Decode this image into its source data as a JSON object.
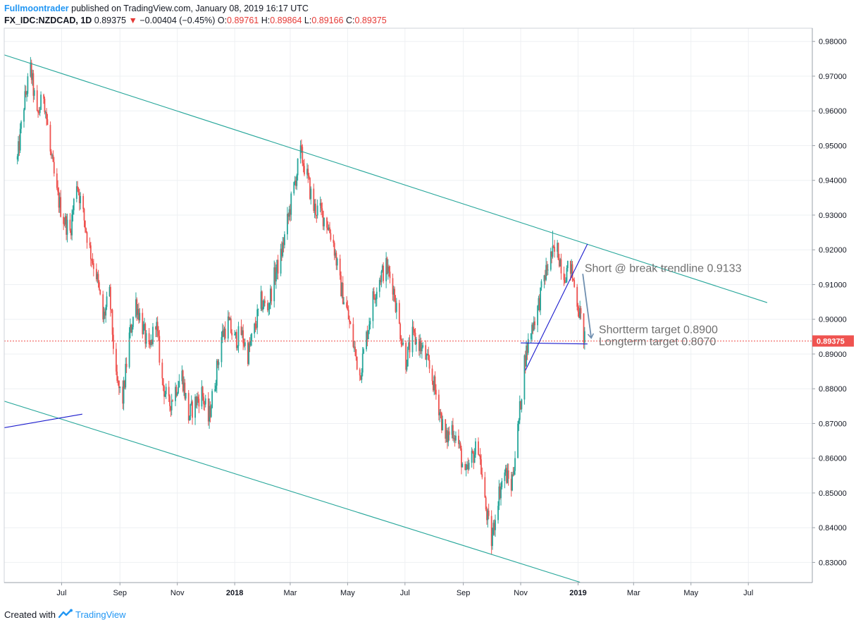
{
  "header": {
    "author": "Fullmoontrader",
    "published": "published on TradingView.com, January 08, 2019 16:17 UTC",
    "symbol": "FX_IDC:NZDCAD, 1D",
    "last": "0.89375",
    "change": "−0.00404 (−0.45%)",
    "o_label": "O:",
    "o_value": "0.89761",
    "h_label": "H:",
    "h_value": "0.89864",
    "l_label": "L:",
    "l_value": "0.89166",
    "c_label": "C:",
    "c_value": "0.89375"
  },
  "footer": {
    "created_with": "Created with",
    "brand": "TradingView"
  },
  "colors": {
    "up": "#26a69a",
    "down": "#ef5350",
    "channel": "#26a69a",
    "trend": "#1a1acd",
    "arrow": "#6f8fb0",
    "price_line": "#ef5350",
    "grid": "#eef0f3",
    "text": "#131722",
    "annotation": "#707070"
  },
  "chart_data": {
    "type": "candlestick",
    "x_axis": {
      "ticks": [
        {
          "label": "Jul",
          "date": "2017-07-01",
          "bold": false
        },
        {
          "label": "Sep",
          "date": "2017-09-01",
          "bold": false
        },
        {
          "label": "Nov",
          "date": "2017-11-01",
          "bold": false
        },
        {
          "label": "2018",
          "date": "2018-01-01",
          "bold": true
        },
        {
          "label": "Mar",
          "date": "2018-03-01",
          "bold": false
        },
        {
          "label": "May",
          "date": "2018-05-01",
          "bold": false
        },
        {
          "label": "Jul",
          "date": "2018-07-01",
          "bold": false
        },
        {
          "label": "Sep",
          "date": "2018-09-01",
          "bold": false
        },
        {
          "label": "Nov",
          "date": "2018-11-01",
          "bold": false
        },
        {
          "label": "2019",
          "date": "2019-01-01",
          "bold": true
        },
        {
          "label": "Mar",
          "date": "2019-03-01",
          "bold": false
        },
        {
          "label": "May",
          "date": "2019-05-01",
          "bold": false
        },
        {
          "label": "Jul",
          "date": "2019-07-01",
          "bold": false
        }
      ]
    },
    "y_axis": {
      "ylim": [
        0.8242,
        0.9838
      ],
      "ticks": [
        "0.98000",
        "0.97000",
        "0.96000",
        "0.95000",
        "0.94000",
        "0.93000",
        "0.92000",
        "0.91000",
        "0.90000",
        "0.89000",
        "0.88000",
        "0.87000",
        "0.86000",
        "0.85000",
        "0.84000",
        "0.83000"
      ],
      "tick_values": [
        0.98,
        0.97,
        0.96,
        0.95,
        0.94,
        0.93,
        0.92,
        0.91,
        0.9,
        0.89,
        0.88,
        0.87,
        0.86,
        0.85,
        0.84,
        0.83
      ]
    },
    "grid": true,
    "current_price": {
      "value": 0.89375,
      "label": "0.89375"
    },
    "price_path": [
      [
        "2017-05-15",
        0.946
      ],
      [
        "2017-05-22",
        0.962
      ],
      [
        "2017-05-29",
        0.972
      ],
      [
        "2017-06-05",
        0.958
      ],
      [
        "2017-06-12",
        0.965
      ],
      [
        "2017-06-19",
        0.948
      ],
      [
        "2017-06-26",
        0.936
      ],
      [
        "2017-07-03",
        0.929
      ],
      [
        "2017-07-10",
        0.925
      ],
      [
        "2017-07-17",
        0.94
      ],
      [
        "2017-07-24",
        0.93
      ],
      [
        "2017-07-31",
        0.92
      ],
      [
        "2017-08-07",
        0.913
      ],
      [
        "2017-08-14",
        0.9
      ],
      [
        "2017-08-21",
        0.907
      ],
      [
        "2017-08-28",
        0.882
      ],
      [
        "2017-09-04",
        0.877
      ],
      [
        "2017-09-11",
        0.895
      ],
      [
        "2017-09-18",
        0.905
      ],
      [
        "2017-09-25",
        0.898
      ],
      [
        "2017-10-02",
        0.89
      ],
      [
        "2017-10-09",
        0.9
      ],
      [
        "2017-10-16",
        0.882
      ],
      [
        "2017-10-23",
        0.875
      ],
      [
        "2017-10-30",
        0.88
      ],
      [
        "2017-11-06",
        0.884
      ],
      [
        "2017-11-13",
        0.872
      ],
      [
        "2017-11-20",
        0.876
      ],
      [
        "2017-11-27",
        0.879
      ],
      [
        "2017-12-04",
        0.871
      ],
      [
        "2017-12-11",
        0.882
      ],
      [
        "2017-12-18",
        0.895
      ],
      [
        "2017-12-25",
        0.899
      ],
      [
        "2018-01-01",
        0.894
      ],
      [
        "2018-01-08",
        0.896
      ],
      [
        "2018-01-15",
        0.89
      ],
      [
        "2018-01-22",
        0.897
      ],
      [
        "2018-01-29",
        0.905
      ],
      [
        "2018-02-05",
        0.903
      ],
      [
        "2018-02-12",
        0.912
      ],
      [
        "2018-02-19",
        0.918
      ],
      [
        "2018-02-26",
        0.928
      ],
      [
        "2018-03-05",
        0.938
      ],
      [
        "2018-03-12",
        0.948
      ],
      [
        "2018-03-19",
        0.941
      ],
      [
        "2018-03-26",
        0.932
      ],
      [
        "2018-04-02",
        0.931
      ],
      [
        "2018-04-09",
        0.928
      ],
      [
        "2018-04-16",
        0.922
      ],
      [
        "2018-04-23",
        0.91
      ],
      [
        "2018-04-30",
        0.903
      ],
      [
        "2018-05-07",
        0.893
      ],
      [
        "2018-05-14",
        0.884
      ],
      [
        "2018-05-21",
        0.895
      ],
      [
        "2018-05-28",
        0.906
      ],
      [
        "2018-06-04",
        0.912
      ],
      [
        "2018-06-11",
        0.915
      ],
      [
        "2018-06-18",
        0.91
      ],
      [
        "2018-06-25",
        0.898
      ],
      [
        "2018-07-02",
        0.888
      ],
      [
        "2018-07-09",
        0.895
      ],
      [
        "2018-07-16",
        0.893
      ],
      [
        "2018-07-23",
        0.889
      ],
      [
        "2018-07-30",
        0.883
      ],
      [
        "2018-08-06",
        0.875
      ],
      [
        "2018-08-13",
        0.865
      ],
      [
        "2018-08-20",
        0.869
      ],
      [
        "2018-08-27",
        0.864
      ],
      [
        "2018-09-03",
        0.854
      ],
      [
        "2018-09-10",
        0.86
      ],
      [
        "2018-09-17",
        0.864
      ],
      [
        "2018-09-24",
        0.847
      ],
      [
        "2018-10-01",
        0.836
      ],
      [
        "2018-10-08",
        0.849
      ],
      [
        "2018-10-15",
        0.856
      ],
      [
        "2018-10-22",
        0.852
      ],
      [
        "2018-10-29",
        0.868
      ],
      [
        "2018-11-05",
        0.888
      ],
      [
        "2018-11-12",
        0.897
      ],
      [
        "2018-11-19",
        0.903
      ],
      [
        "2018-11-26",
        0.912
      ],
      [
        "2018-12-03",
        0.918
      ],
      [
        "2018-12-10",
        0.92
      ],
      [
        "2018-12-17",
        0.913
      ],
      [
        "2018-12-24",
        0.915
      ],
      [
        "2019-01-01",
        0.904
      ],
      [
        "2019-01-08",
        0.894
      ]
    ],
    "extremes": [
      {
        "date": "2017-05-29",
        "high": 0.9755
      },
      {
        "date": "2018-03-12",
        "high": 0.9515
      },
      {
        "date": "2018-10-01",
        "low": 0.8322
      },
      {
        "date": "2018-12-05",
        "high": 0.9255
      }
    ],
    "drawings": [
      {
        "name": "upper-channel-line",
        "type": "trendline",
        "color": "channel",
        "from": [
          "2017-04-29",
          0.9763
        ],
        "to": [
          "2019-07-21",
          0.9048
        ]
      },
      {
        "name": "lower-channel-line",
        "type": "trendline",
        "color": "channel",
        "from": [
          "2017-04-29",
          0.8766
        ],
        "to": [
          "2019-01-03",
          0.8243
        ]
      },
      {
        "name": "short-left-trendline",
        "type": "trendline",
        "color": "trend",
        "from": [
          "2017-04-29",
          0.8687
        ],
        "to": [
          "2017-07-23",
          0.8727
        ]
      },
      {
        "name": "rising-trendline",
        "type": "trendline",
        "color": "trend",
        "from": [
          "2018-11-06",
          0.8853
        ],
        "to": [
          "2019-01-11",
          0.9217
        ]
      },
      {
        "name": "horizontal-target-line",
        "type": "trendline",
        "color": "trend",
        "from": [
          "2018-11-01",
          0.8932
        ],
        "to": [
          "2019-01-11",
          0.8929
        ]
      },
      {
        "name": "forecast-arrow",
        "type": "arrow",
        "color": "arrow",
        "from": [
          "2019-01-06",
          0.9131
        ],
        "to": [
          "2019-01-15",
          0.8946
        ]
      }
    ],
    "annotations": [
      {
        "name": "short-annotation",
        "text": "Short @ break trendline 0.9133",
        "anchor": [
          "2019-01-08",
          0.9136
        ]
      },
      {
        "name": "shortterm-target-annotation",
        "text": "Shortterm target 0.8900",
        "anchor": [
          "2019-01-23",
          0.896
        ]
      },
      {
        "name": "longterm-target-annotation",
        "text": "Longterm target 0.8070",
        "anchor": [
          "2019-01-23",
          0.8925
        ]
      }
    ]
  }
}
